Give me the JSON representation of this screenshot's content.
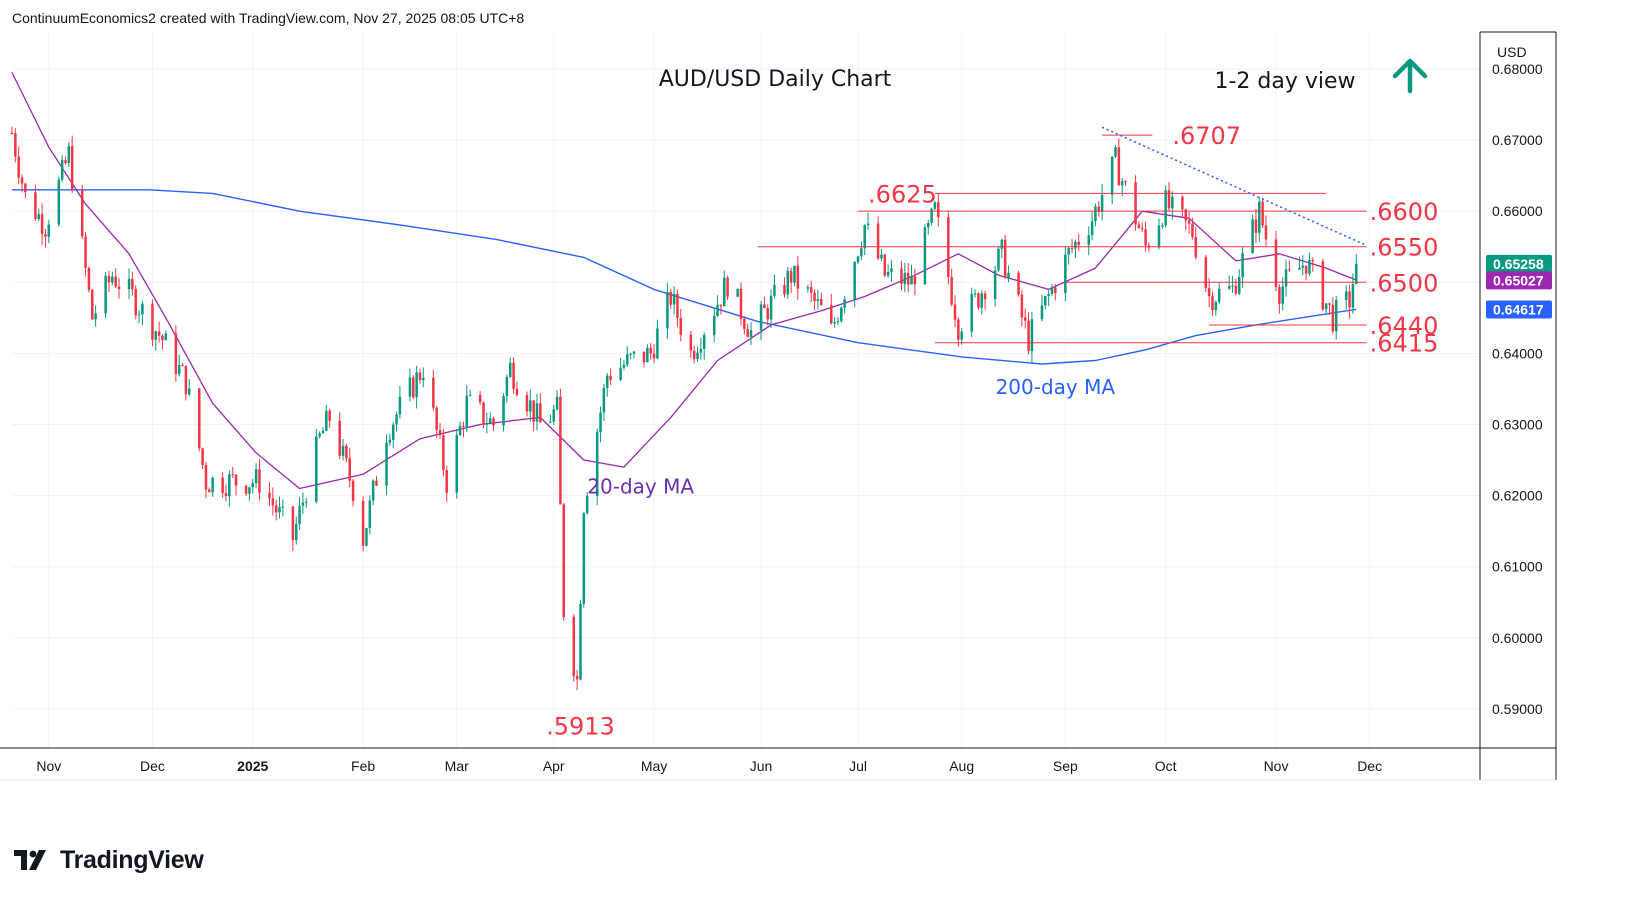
{
  "header": {
    "credit": "ContinuumEconomics2 created with TradingView.com, Nov 27, 2025 08:05 UTC+8"
  },
  "brand": {
    "name": "TradingView"
  },
  "colors": {
    "up": "#089981",
    "down": "#f23645",
    "ma20": "#9c27b0",
    "ma200": "#2962ff",
    "level": "#f23645",
    "trend": "#2962ff",
    "arrow": "#089981",
    "last": "#089981"
  },
  "chart_data": {
    "type": "candlestick",
    "title": "AUD/USD Daily Chart",
    "subtitle": "1-2 day view",
    "view_arrow": "up-arrow",
    "currency": "USD",
    "ylim": [
      0.5845,
      0.6852
    ],
    "xlim": [
      "2024-10-21",
      "2026-01-03"
    ],
    "grid": true,
    "y_ticks": [
      "0.68000",
      "0.67000",
      "0.66000",
      "0.65000",
      "0.64000",
      "0.63000",
      "0.62000",
      "0.61000",
      "0.60000",
      "0.59000"
    ],
    "x_ticks": [
      {
        "label": "Nov",
        "date": "2024-11-01"
      },
      {
        "label": "Dec",
        "date": "2024-12-02"
      },
      {
        "label": "2025",
        "date": "2025-01-01"
      },
      {
        "label": "Feb",
        "date": "2025-02-03"
      },
      {
        "label": "Mar",
        "date": "2025-03-03"
      },
      {
        "label": "Apr",
        "date": "2025-04-01"
      },
      {
        "label": "May",
        "date": "2025-05-01"
      },
      {
        "label": "Jun",
        "date": "2025-06-02"
      },
      {
        "label": "Jul",
        "date": "2025-07-01"
      },
      {
        "label": "Aug",
        "date": "2025-08-01"
      },
      {
        "label": "Sep",
        "date": "2025-09-01"
      },
      {
        "label": "Oct",
        "date": "2025-10-01"
      },
      {
        "label": "Nov",
        "date": "2025-11-03"
      },
      {
        "label": "Dec",
        "date": "2025-12-01"
      }
    ],
    "anchors": [
      [
        "2024-10-21",
        0.671
      ],
      [
        "2024-10-25",
        0.662
      ],
      [
        "2024-10-31",
        0.658
      ],
      [
        "2024-11-07",
        0.668
      ],
      [
        "2024-11-14",
        0.645
      ],
      [
        "2024-11-20",
        0.651
      ],
      [
        "2024-11-26",
        0.648
      ],
      [
        "2024-12-05",
        0.642
      ],
      [
        "2024-12-12",
        0.636
      ],
      [
        "2024-12-18",
        0.622
      ],
      [
        "2024-12-26",
        0.622
      ],
      [
        "2025-01-03",
        0.622
      ],
      [
        "2025-01-13",
        0.614
      ],
      [
        "2025-01-21",
        0.628
      ],
      [
        "2025-01-24",
        0.631
      ],
      [
        "2025-01-31",
        0.621
      ],
      [
        "2025-02-03",
        0.614
      ],
      [
        "2025-02-10",
        0.629
      ],
      [
        "2025-02-21",
        0.638
      ],
      [
        "2025-02-28",
        0.622
      ],
      [
        "2025-03-06",
        0.633
      ],
      [
        "2025-03-14",
        0.63
      ],
      [
        "2025-03-19",
        0.638
      ],
      [
        "2025-03-28",
        0.63
      ],
      [
        "2025-04-02",
        0.632
      ],
      [
        "2025-04-04",
        0.604
      ],
      [
        "2025-04-08",
        0.594
      ],
      [
        "2025-04-10",
        0.619
      ],
      [
        "2025-04-17",
        0.637
      ],
      [
        "2025-04-24",
        0.639
      ],
      [
        "2025-04-30",
        0.64
      ],
      [
        "2025-05-06",
        0.648
      ],
      [
        "2025-05-12",
        0.64
      ],
      [
        "2025-05-23",
        0.65
      ],
      [
        "2025-05-30",
        0.643
      ],
      [
        "2025-06-11",
        0.651
      ],
      [
        "2025-06-20",
        0.646
      ],
      [
        "2025-06-23",
        0.643
      ],
      [
        "2025-07-03",
        0.658
      ],
      [
        "2025-07-09",
        0.651
      ],
      [
        "2025-07-17",
        0.65
      ],
      [
        "2025-07-24",
        0.66
      ],
      [
        "2025-07-31",
        0.644
      ],
      [
        "2025-08-06",
        0.648
      ],
      [
        "2025-08-13",
        0.654
      ],
      [
        "2025-08-21",
        0.642
      ],
      [
        "2025-09-02",
        0.654
      ],
      [
        "2025-09-09",
        0.659
      ],
      [
        "2025-09-16",
        0.667
      ],
      [
        "2025-09-25",
        0.655
      ],
      [
        "2025-10-01",
        0.661
      ],
      [
        "2025-10-09",
        0.657
      ],
      [
        "2025-10-14",
        0.648
      ],
      [
        "2025-10-21",
        0.649
      ],
      [
        "2025-10-29",
        0.66
      ],
      [
        "2025-11-04",
        0.649
      ],
      [
        "2025-11-12",
        0.653
      ],
      [
        "2025-11-20",
        0.645
      ],
      [
        "2025-11-25",
        0.6475
      ],
      [
        "2025-11-27",
        0.6526
      ]
    ],
    "ma20": [
      [
        "2024-10-21",
        0.6795
      ],
      [
        "2024-11-01",
        0.669
      ],
      [
        "2024-11-12",
        0.661
      ],
      [
        "2024-11-25",
        0.654
      ],
      [
        "2024-12-06",
        0.645
      ],
      [
        "2024-12-20",
        0.633
      ],
      [
        "2025-01-02",
        0.626
      ],
      [
        "2025-01-15",
        0.621
      ],
      [
        "2025-02-03",
        0.623
      ],
      [
        "2025-02-20",
        0.628
      ],
      [
        "2025-03-10",
        0.63
      ],
      [
        "2025-03-28",
        0.631
      ],
      [
        "2025-04-10",
        0.625
      ],
      [
        "2025-04-22",
        0.624
      ],
      [
        "2025-05-06",
        0.631
      ],
      [
        "2025-05-20",
        0.639
      ],
      [
        "2025-06-05",
        0.644
      ],
      [
        "2025-06-20",
        0.646
      ],
      [
        "2025-07-03",
        0.648
      ],
      [
        "2025-07-18",
        0.651
      ],
      [
        "2025-07-31",
        0.654
      ],
      [
        "2025-08-12",
        0.651
      ],
      [
        "2025-08-27",
        0.649
      ],
      [
        "2025-09-10",
        0.652
      ],
      [
        "2025-09-24",
        0.66
      ],
      [
        "2025-10-08",
        0.659
      ],
      [
        "2025-10-22",
        0.653
      ],
      [
        "2025-11-04",
        0.654
      ],
      [
        "2025-11-18",
        0.652
      ],
      [
        "2025-11-27",
        0.6503
      ]
    ],
    "ma200": [
      [
        "2024-10-21",
        0.663
      ],
      [
        "2024-12-01",
        0.663
      ],
      [
        "2024-12-20",
        0.6625
      ],
      [
        "2025-01-15",
        0.66
      ],
      [
        "2025-02-15",
        0.658
      ],
      [
        "2025-03-15",
        0.656
      ],
      [
        "2025-04-10",
        0.6535
      ],
      [
        "2025-05-01",
        0.649
      ],
      [
        "2025-06-01",
        0.6445
      ],
      [
        "2025-07-01",
        0.6415
      ],
      [
        "2025-08-01",
        0.6395
      ],
      [
        "2025-08-25",
        0.6385
      ],
      [
        "2025-09-10",
        0.639
      ],
      [
        "2025-09-25",
        0.6405
      ],
      [
        "2025-10-10",
        0.6425
      ],
      [
        "2025-10-28",
        0.644
      ],
      [
        "2025-11-27",
        0.6462
      ]
    ],
    "levels": [
      {
        "label": ".6707",
        "value": 0.6707,
        "from": "2025-09-12",
        "to": "2025-09-27",
        "label_date": "2025-10-03"
      },
      {
        "label": ".6625",
        "value": 0.6625,
        "from": "2025-07-24",
        "to": "2025-11-18",
        "label_date": "2025-07-04"
      },
      {
        "label": ".6600",
        "value": 0.66,
        "from": "2025-07-01",
        "to": "2025-11-30",
        "label_date": "2025-12-01"
      },
      {
        "label": ".6550",
        "value": 0.655,
        "from": "2025-06-01",
        "to": "2025-11-30",
        "label_date": "2025-12-01"
      },
      {
        "label": ".6500",
        "value": 0.65,
        "from": "2025-09-01",
        "to": "2025-11-30",
        "label_date": "2025-12-01"
      },
      {
        "label": ".6440",
        "value": 0.644,
        "from": "2025-10-14",
        "to": "2025-11-30",
        "label_date": "2025-12-01"
      },
      {
        "label": ".6415",
        "value": 0.6415,
        "from": "2025-07-24",
        "to": "2025-11-30",
        "label_date": "2025-12-01"
      }
    ],
    "low_label": {
      "label": ".5913",
      "value": 0.5913,
      "date": "2025-04-09"
    },
    "trendline": {
      "from": [
        "2025-09-12",
        0.6718
      ],
      "to": [
        "2025-11-30",
        0.6552
      ]
    },
    "ma_labels": {
      "ma20": {
        "text": "20-day MA",
        "date": "2025-04-27",
        "value": 0.6245
      },
      "ma200": {
        "text": "200-day MA",
        "date": "2025-08-29",
        "value": 0.6385
      }
    },
    "price_badges": [
      {
        "text": "0.65258",
        "value": 0.65258,
        "color": "#089981"
      },
      {
        "text": "0.65027",
        "value": 0.65027,
        "color": "#9c27b0"
      },
      {
        "text": "0.64617",
        "value": 0.64617,
        "color": "#2962ff"
      }
    ]
  }
}
